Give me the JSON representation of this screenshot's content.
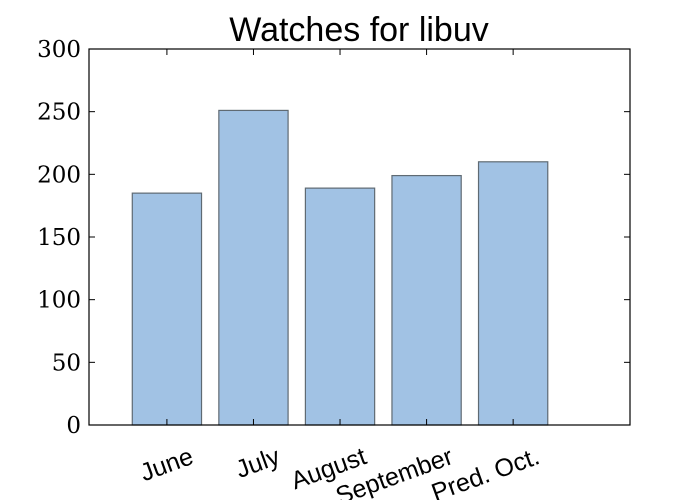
{
  "chart_data": {
    "type": "bar",
    "title": "Watches for libuv",
    "xlabel": "",
    "ylabel": "",
    "categories": [
      "June",
      "July",
      "August",
      "September",
      "Pred. Oct."
    ],
    "values": [
      185,
      251,
      189,
      199,
      210
    ],
    "ylim": [
      0,
      300
    ],
    "yticks": [
      0,
      50,
      100,
      150,
      200,
      250,
      300
    ],
    "grid": false,
    "bar_color": "#a1c2e4",
    "bar_edge_color": "#5f6a73"
  }
}
